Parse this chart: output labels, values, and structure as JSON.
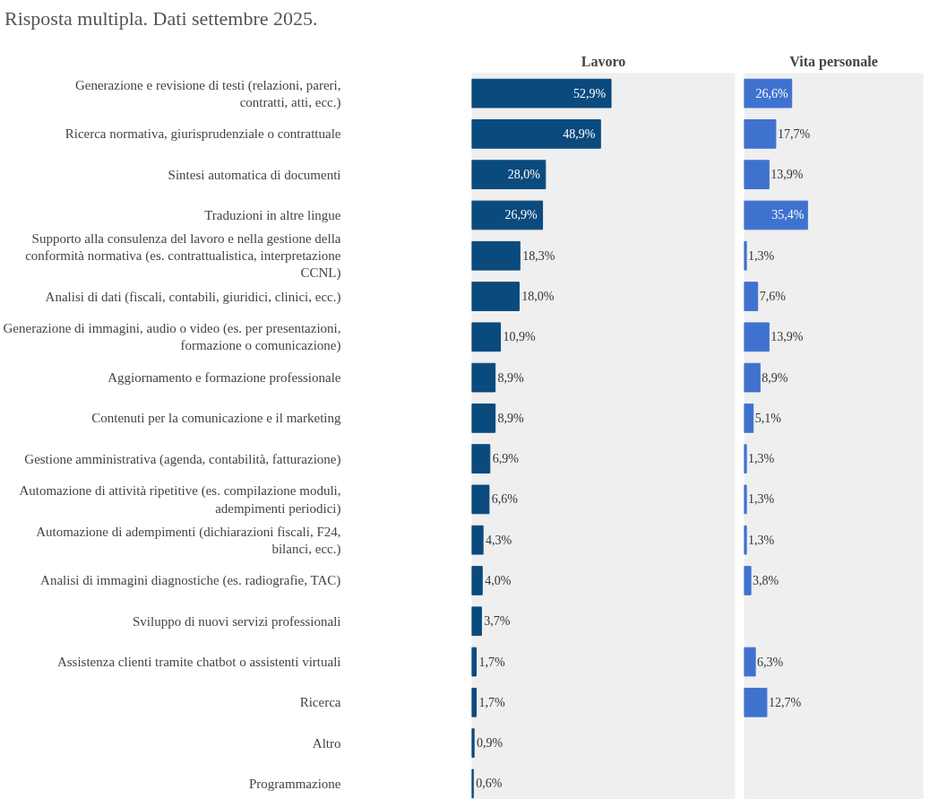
{
  "chart_data": [
    {
      "type": "bar",
      "orientation": "horizontal",
      "subtitle": "Risposta multipla. Dati settembre 2025.",
      "title": "Lavoro",
      "categories": [
        "Generazione e revisione di testi (relazioni, pareri, contratti, atti, ecc.)",
        "Ricerca normativa, giurisprudenziale o contrattuale",
        "Sintesi automatica di documenti",
        "Traduzioni in altre lingue",
        "Supporto alla consulenza del lavoro e nella gestione della conformità normativa (es. contrattualistica, interpretazione CCNL)",
        "Analisi di dati (fiscali, contabili, giuridici, clinici, ecc.)",
        "Generazione di immagini, audio o video (es. per presentazioni, formazione o comunicazione)",
        "Aggiornamento e formazione professionale",
        "Contenuti per la comunicazione e il marketing",
        "Gestione amministrativa (agenda, contabilità, fatturazione)",
        "Automazione di attività ripetitive (es. compilazione moduli, adempimenti periodici)",
        "Automazione di adempimenti (dichiarazioni fiscali, F24, bilanci, ecc.)",
        "Analisi di immagini diagnostiche (es. radiografie, TAC)",
        "Sviluppo di nuovi servizi professionali",
        "Assistenza clienti tramite chatbot o assistenti virtuali",
        "Ricerca",
        "Altro",
        "Programmazione"
      ],
      "values": [
        52.9,
        48.9,
        28.0,
        26.9,
        18.3,
        18.0,
        10.9,
        8.9,
        8.9,
        6.9,
        6.6,
        4.3,
        4.0,
        3.7,
        1.7,
        1.7,
        0.9,
        0.6
      ],
      "value_labels": [
        "52,9%",
        "48,9%",
        "28,0%",
        "26,9%",
        "18,3%",
        "18,0%",
        "10,9%",
        "8,9%",
        "8,9%",
        "6,9%",
        "6,6%",
        "4,3%",
        "4,0%",
        "3,7%",
        "1,7%",
        "1,7%",
        "0,9%",
        "0,6%"
      ],
      "color": "#0b4a7d",
      "xlim": [
        0,
        100
      ],
      "tick_labels": "y"
    },
    {
      "type": "bar",
      "orientation": "horizontal",
      "title": "Vita personale",
      "categories": [
        "Generazione e revisione di testi (relazioni, pareri, contratti, atti, ecc.)",
        "Ricerca normativa, giurisprudenziale o contrattuale",
        "Sintesi automatica di documenti",
        "Traduzioni in altre lingue",
        "Supporto alla consulenza del lavoro e nella gestione della conformità normativa (es. contrattualistica, interpretazione CCNL)",
        "Analisi di dati (fiscali, contabili, giuridici, clinici, ecc.)",
        "Generazione di immagini, audio o video (es. per presentazioni, formazione o comunicazione)",
        "Aggiornamento e formazione professionale",
        "Contenuti per la comunicazione e il marketing",
        "Gestione amministrativa (agenda, contabilità, fatturazione)",
        "Automazione di attività ripetitive (es. compilazione moduli, adempimenti periodici)",
        "Automazione di adempimenti (dichiarazioni fiscali, F24, bilanci, ecc.)",
        "Analisi di immagini diagnostiche (es. radiografie, TAC)",
        "Sviluppo di nuovi servizi professionali",
        "Assistenza clienti tramite chatbot o assistenti virtuali",
        "Ricerca",
        "Altro",
        "Programmazione"
      ],
      "values": [
        26.6,
        17.7,
        13.9,
        35.4,
        1.3,
        7.6,
        13.9,
        8.9,
        5.1,
        1.3,
        1.3,
        1.3,
        3.8,
        null,
        6.3,
        12.7,
        null,
        null
      ],
      "value_labels": [
        "26,6%",
        "17,7%",
        "13,9%",
        "35,4%",
        "1,3%",
        "7,6%",
        "13,9%",
        "8,9%",
        "5,1%",
        "1,3%",
        "1,3%",
        "1,3%",
        "3,8%",
        null,
        "6,3%",
        "12,7%",
        null,
        null
      ],
      "color": "#3f72cf",
      "xlim": [
        0,
        100
      ],
      "tick_labels": false
    }
  ]
}
